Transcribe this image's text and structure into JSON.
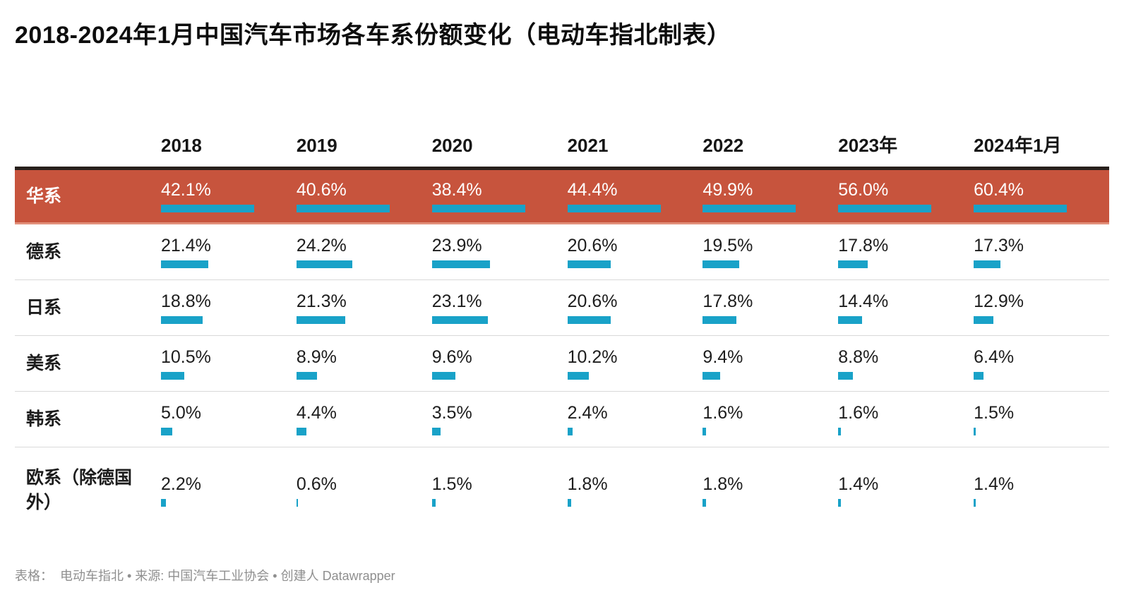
{
  "title": "2018-2024年1月中国汽车市场各车系份额变化（电动车指北制表）",
  "footer": {
    "text": "表格：  电动车指北 • 来源: 中国汽车工业协会 • 创建人 Datawrapper"
  },
  "colors": {
    "highlight_bg": "#c7543d",
    "highlight_text": "#ffffff",
    "bar": "#19a2c8",
    "header_border": "#28201c",
    "highlight_bottom_border": "#e2907b",
    "row_divider": "#d9d9d9",
    "text": "#1d1d1d",
    "footer_text": "#8f8f8f"
  },
  "chart_data": {
    "type": "table",
    "title": "2018-2024年1月中国汽车市场各车系份额变化（电动车指北制表）",
    "unit": "%",
    "value_format": "one-decimal-percent",
    "bar_scaling": "per-column-max",
    "legend": "none",
    "grid": "row-dividers",
    "categories": [
      "2018",
      "2019",
      "2020",
      "2021",
      "2022",
      "2023年",
      "2024年1月"
    ],
    "series": [
      {
        "name": "华系",
        "highlight": true,
        "values": [
          42.1,
          40.6,
          38.4,
          44.4,
          49.9,
          56.0,
          60.4
        ]
      },
      {
        "name": "德系",
        "highlight": false,
        "values": [
          21.4,
          24.2,
          23.9,
          20.6,
          19.5,
          17.8,
          17.3
        ]
      },
      {
        "name": "日系",
        "highlight": false,
        "values": [
          18.8,
          21.3,
          23.1,
          20.6,
          17.8,
          14.4,
          12.9
        ]
      },
      {
        "name": "美系",
        "highlight": false,
        "values": [
          10.5,
          8.9,
          9.6,
          10.2,
          9.4,
          8.8,
          6.4
        ]
      },
      {
        "name": "韩系",
        "highlight": false,
        "values": [
          5.0,
          4.4,
          3.5,
          2.4,
          1.6,
          1.6,
          1.5
        ]
      },
      {
        "name": "欧系（除德国外）",
        "highlight": false,
        "values": [
          2.2,
          0.6,
          1.5,
          1.8,
          1.8,
          1.4,
          1.4
        ]
      }
    ]
  }
}
